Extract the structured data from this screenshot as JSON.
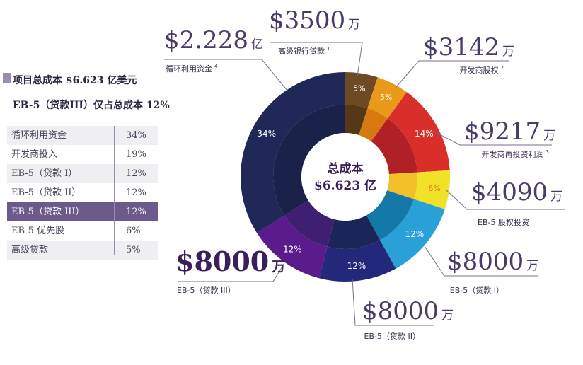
{
  "header": {
    "line1": "项目总成本 $6.623 亿美元",
    "line2": "EB-5（贷款III）仅占总成本 12%"
  },
  "table": {
    "rows": [
      {
        "label": "循环利用资金",
        "value": "34%"
      },
      {
        "label": "开发商投入",
        "value": "19%"
      },
      {
        "label": "EB-5（贷款 I）",
        "value": "12%"
      },
      {
        "label": "EB-5（贷款 II）",
        "value": "12%"
      },
      {
        "label": "EB-5（贷款 III）",
        "value": "12%"
      },
      {
        "label": "EB-5 优先股",
        "value": "6%"
      },
      {
        "label": "高级贷款",
        "value": "5%"
      }
    ]
  },
  "chart_data": {
    "type": "pie",
    "center_label": [
      "总成本",
      "$6.623 亿"
    ],
    "slices": [
      {
        "amount": "$3500",
        "unit": "万",
        "caption": "高级银行贷款",
        "sup": "1",
        "percent": 5,
        "percent_label": "5%",
        "color": "#6e4a24",
        "inner_color": "#553818",
        "label_color": "#ffffff"
      },
      {
        "amount": "$3142",
        "unit": "万",
        "caption": "开发商股权",
        "sup": "2",
        "percent": 5,
        "percent_label": "5%",
        "color": "#e89a18",
        "inner_color": "#d77910",
        "label_color": "#ffffff"
      },
      {
        "amount": "$9217",
        "unit": "万",
        "caption": "开发商再投资利润",
        "sup": "3",
        "percent": 14,
        "percent_label": "14%",
        "color": "#d92e2a",
        "inner_color": "#b02026",
        "label_color": "#ffffff"
      },
      {
        "amount": "$4090",
        "unit": "万",
        "caption": "EB-5 股权投资",
        "sup": "",
        "percent": 6,
        "percent_label": "6%",
        "color": "#f1e227",
        "inner_color": "#f2c12a",
        "label_color": "#e8731a"
      },
      {
        "amount": "$8000",
        "unit": "万",
        "caption": "EB-5（贷款 I）",
        "sup": "",
        "percent": 12,
        "percent_label": "12%",
        "color": "#2aa0d8",
        "inner_color": "#1478a8",
        "label_color": "#ffffff"
      },
      {
        "amount": "$8000",
        "unit": "万",
        "caption": "EB-5（贷款 II）",
        "sup": "",
        "percent": 12,
        "percent_label": "12%",
        "color": "#23287a",
        "inner_color": "#1c2558",
        "label_color": "#ffffff"
      },
      {
        "amount": "$8000",
        "unit": "万",
        "caption": "EB-5（贷款 III）",
        "sup": "",
        "percent": 12,
        "percent_label": "12%",
        "color": "#5a1c8c",
        "inner_color": "#3e1f72",
        "label_color": "#ffffff"
      },
      {
        "amount": "$2.228",
        "unit": "亿",
        "caption": "循环利用资金",
        "sup": "4",
        "percent": 34,
        "percent_label": "34%",
        "color": "#1f2856",
        "inner_color": "#1a2249",
        "label_color": "#ffffff"
      }
    ]
  }
}
